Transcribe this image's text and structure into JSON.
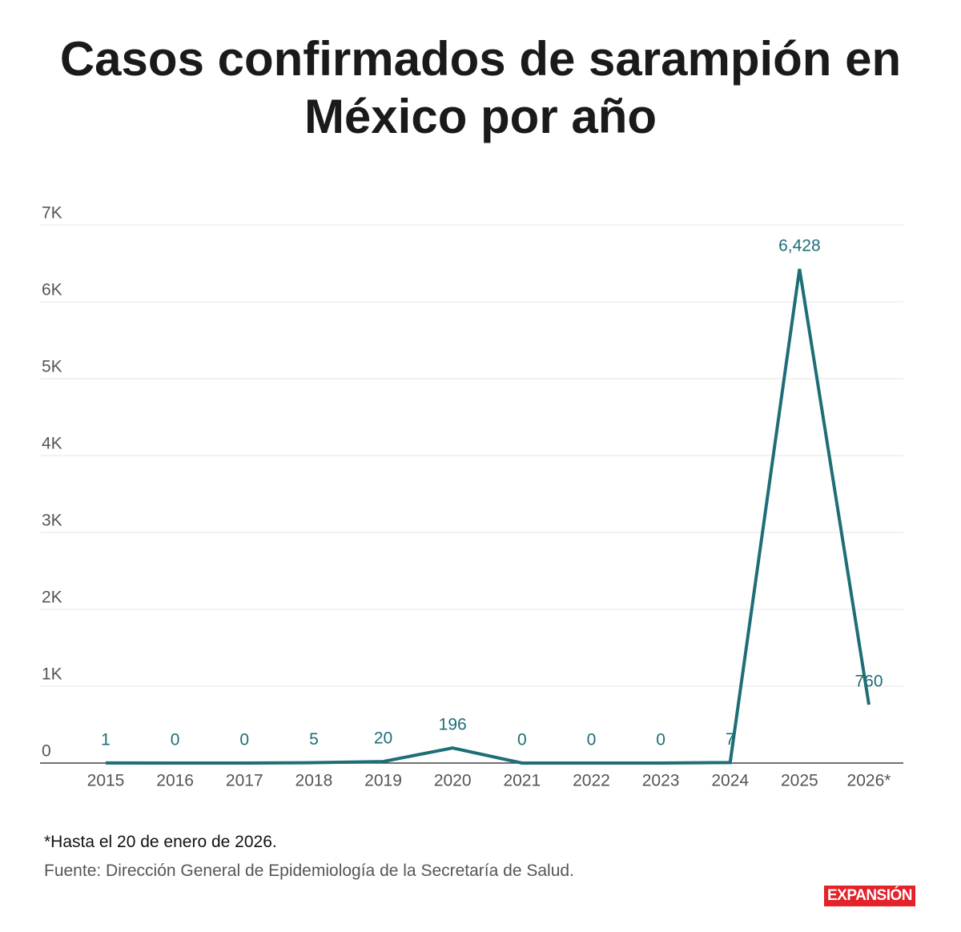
{
  "chart_data": {
    "type": "line",
    "title": "Casos confirmados de sarampión en México por año",
    "categories": [
      "2015",
      "2016",
      "2017",
      "2018",
      "2019",
      "2020",
      "2021",
      "2022",
      "2023",
      "2024",
      "2025",
      "2026*"
    ],
    "series": [
      {
        "name": "Casos confirmados",
        "color": "#1e6e76",
        "values": [
          1,
          0,
          0,
          5,
          20,
          196,
          0,
          0,
          0,
          7,
          6428,
          760
        ],
        "value_labels": [
          "1",
          "0",
          "0",
          "5",
          "20",
          "196",
          "0",
          "0",
          "0",
          "7",
          "6,428",
          "760"
        ]
      }
    ],
    "ylim": [
      0,
      7000
    ],
    "yticks": [
      0,
      {
        "value": 1000,
        "label": "1K"
      },
      {
        "value": 2000,
        "label": "2K"
      },
      {
        "value": 3000,
        "label": "3K"
      },
      {
        "value": 4000,
        "label": "4K"
      },
      {
        "value": 5000,
        "label": "5K"
      },
      {
        "value": 6000,
        "label": "6K"
      },
      {
        "value": 7000,
        "label": "7K"
      }
    ],
    "grid": true,
    "footnote": "*Hasta el 20 de enero de 2026.",
    "source": "Fuente: Dirección General de Epidemiología de la Secretaría de Salud.",
    "logo": "EXPANSIÓN"
  }
}
